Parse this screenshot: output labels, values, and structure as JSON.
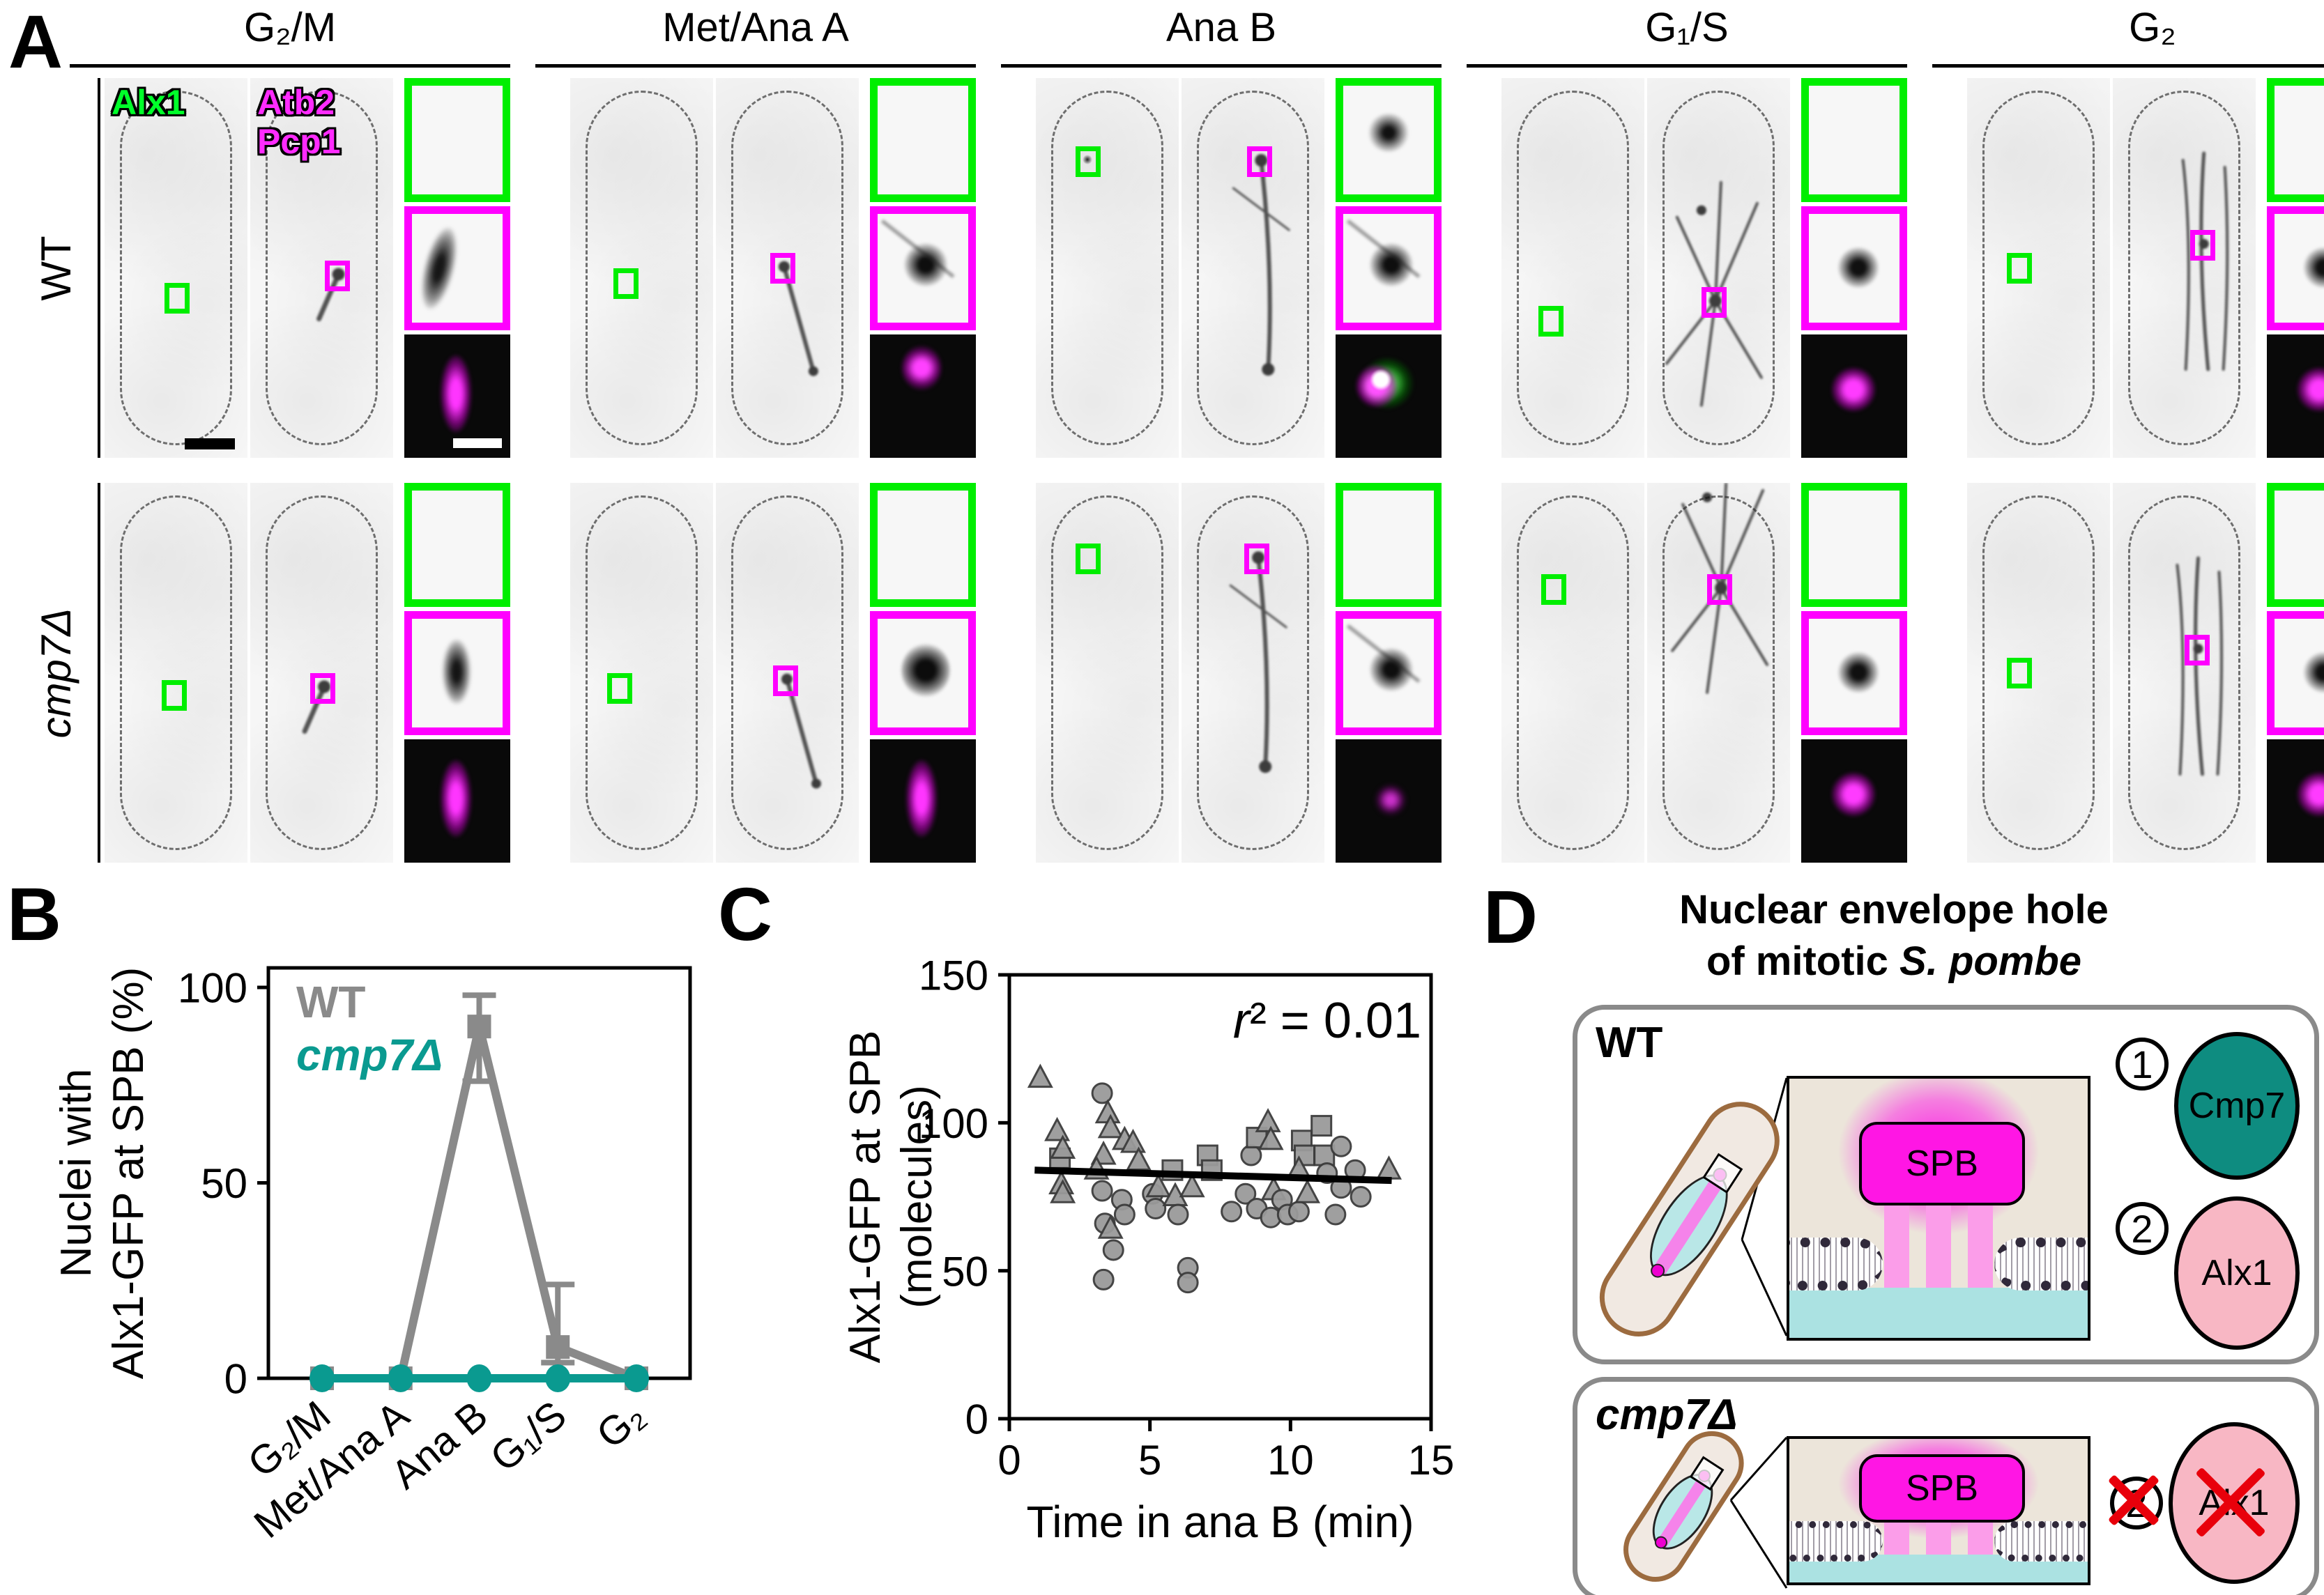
{
  "panels": {
    "A": {
      "label": "A",
      "columns": [
        "G₂/M",
        "Met/Ana A",
        "Ana B",
        "G₁/S",
        "G₂"
      ],
      "row_labels": [
        "WT",
        "cmp7Δ"
      ],
      "channels": {
        "green": "Alx1",
        "magenta_1": "Atb2",
        "magenta_2": "Pcp1"
      }
    },
    "B": {
      "label": "B"
    },
    "C": {
      "label": "C"
    },
    "D": {
      "label": "D",
      "title_line1": "Nuclear envelope hole",
      "title_line2_prefix": "of mitotic ",
      "title_line2_species": "S. pombe",
      "boxes": [
        {
          "label": "WT",
          "spb_label": "SPB",
          "legend": [
            {
              "num": "1",
              "name": "Cmp7",
              "color": "#0e8c80",
              "crossed": false
            },
            {
              "num": "2",
              "name": "Alx1",
              "color": "#f8b7c4",
              "crossed": false
            }
          ]
        },
        {
          "label": "cmp7Δ",
          "spb_label": "SPB",
          "legend": [
            {
              "num": "2",
              "name": "Alx1",
              "color": "#f8b7c4",
              "crossed": true
            }
          ]
        }
      ]
    }
  },
  "colors": {
    "green_frame": "#00ee00",
    "magenta_frame": "#ff00ff",
    "wt_gray": "#8a8a8a",
    "cmp7_teal": "#0a9a90",
    "scatter_gray": "#9a9a9a",
    "spb_magenta": "#ff16e4",
    "cmp7_circle": "#0e8c80",
    "alx1_circle": "#f8b7c4",
    "red_x": "#e8000b"
  },
  "chart_data": [
    {
      "panel": "B",
      "type": "line",
      "categories": [
        "G₂/M",
        "Met/Ana A",
        "Ana B",
        "G₁/S",
        "G₂"
      ],
      "series": [
        {
          "name": "WT",
          "color": "#8a8a8a",
          "marker": "square",
          "values": [
            0,
            0,
            90,
            8,
            0
          ],
          "err_up": [
            0,
            0,
            8,
            16,
            0
          ],
          "err_down": [
            0,
            0,
            14,
            4,
            0
          ]
        },
        {
          "name": "cmp7Δ",
          "color": "#0a9a90",
          "marker": "circle",
          "values": [
            0,
            0,
            0,
            0,
            0
          ],
          "err_up": [
            0,
            0,
            0,
            0,
            0
          ],
          "err_down": [
            0,
            0,
            0,
            0,
            0
          ]
        }
      ],
      "ylabel_line1": "Nuclei with",
      "ylabel_line2": "Alx1-GFP at SPB (%)",
      "yticks": [
        0,
        50,
        100
      ],
      "ylim": [
        0,
        105
      ],
      "legend_position": "top-left",
      "grid": false
    },
    {
      "panel": "C",
      "type": "scatter",
      "xlabel": "Time in ana B (min)",
      "ylabel_line1": "Alx1-GFP at SPB",
      "ylabel_line2": "(molecules)",
      "xticks": [
        0,
        5,
        10,
        15
      ],
      "yticks": [
        0,
        50,
        100,
        150
      ],
      "xlim": [
        0,
        15
      ],
      "ylim": [
        0,
        150
      ],
      "annotation": "r² = 0.01",
      "trend": {
        "x1": 0.9,
        "y1": 84,
        "x2": 13.6,
        "y2": 80.5
      },
      "points": [
        [
          1.1,
          115,
          "t"
        ],
        [
          1.7,
          97,
          "t"
        ],
        [
          1.8,
          88,
          "s"
        ],
        [
          1.9,
          91,
          "t"
        ],
        [
          1.85,
          79,
          "t"
        ],
        [
          1.9,
          76,
          "t"
        ],
        [
          3.3,
          110,
          "c"
        ],
        [
          3.5,
          103,
          "t"
        ],
        [
          3.6,
          98,
          "t"
        ],
        [
          3.35,
          89,
          "t"
        ],
        [
          3.1,
          84,
          "t"
        ],
        [
          3.3,
          77,
          "c"
        ],
        [
          3.4,
          66,
          "c"
        ],
        [
          3.6,
          64,
          "t"
        ],
        [
          3.7,
          57,
          "c"
        ],
        [
          3.35,
          47,
          "c"
        ],
        [
          4.0,
          74,
          "c"
        ],
        [
          4.1,
          69,
          "c"
        ],
        [
          4.1,
          94,
          "t"
        ],
        [
          4.4,
          93,
          "t"
        ],
        [
          4.6,
          87,
          "t"
        ],
        [
          5.1,
          76,
          "c"
        ],
        [
          5.2,
          71,
          "c"
        ],
        [
          5.3,
          78,
          "t"
        ],
        [
          5.8,
          84,
          "s"
        ],
        [
          5.9,
          75,
          "t"
        ],
        [
          6.0,
          69,
          "c"
        ],
        [
          6.35,
          51,
          "c"
        ],
        [
          6.35,
          46,
          "c"
        ],
        [
          6.5,
          78,
          "t"
        ],
        [
          7.05,
          89,
          "s"
        ],
        [
          7.2,
          84,
          "s"
        ],
        [
          7.9,
          70,
          "c"
        ],
        [
          8.4,
          76,
          "c"
        ],
        [
          8.6,
          89,
          "c"
        ],
        [
          8.8,
          95,
          "s"
        ],
        [
          8.8,
          71,
          "c"
        ],
        [
          9.2,
          100,
          "t"
        ],
        [
          9.3,
          94,
          "t"
        ],
        [
          9.3,
          68,
          "c"
        ],
        [
          9.4,
          77,
          "t"
        ],
        [
          9.7,
          74,
          "c"
        ],
        [
          9.9,
          69,
          "c"
        ],
        [
          10.4,
          94,
          "s"
        ],
        [
          10.5,
          89,
          "s"
        ],
        [
          10.3,
          84,
          "t"
        ],
        [
          10.3,
          70,
          "c"
        ],
        [
          10.6,
          76,
          "t"
        ],
        [
          11.1,
          99,
          "s"
        ],
        [
          11.2,
          89,
          "s"
        ],
        [
          11.3,
          83,
          "c"
        ],
        [
          11.6,
          69,
          "c"
        ],
        [
          11.8,
          92,
          "c"
        ],
        [
          11.8,
          78,
          "c"
        ],
        [
          12.3,
          84,
          "c"
        ],
        [
          12.5,
          75,
          "c"
        ],
        [
          13.5,
          84,
          "t"
        ]
      ]
    }
  ]
}
